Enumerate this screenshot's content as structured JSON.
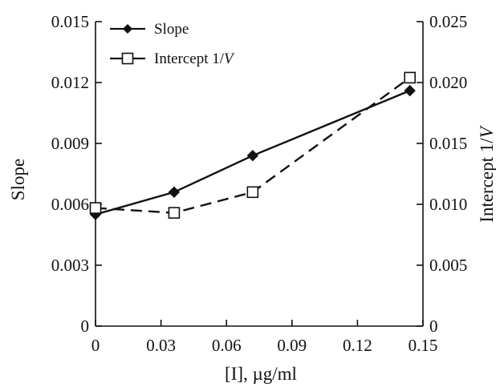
{
  "chart_data": {
    "type": "line",
    "x": [
      0,
      0.036,
      0.072,
      0.144
    ],
    "xlabel": "[I], µg/ml",
    "xlim": [
      0,
      0.15
    ],
    "xticks": [
      "0",
      "0.03",
      "0.06",
      "0.09",
      "0.12",
      "0.15"
    ],
    "ylabel_left": "Slope",
    "ylim_left": [
      0,
      0.015
    ],
    "yticks_left": [
      "0",
      "0.003",
      "0.006",
      "0.009",
      "0.012",
      "0.015"
    ],
    "ylabel_right": "Intercept 1/",
    "ylabel_right_italic": "V",
    "ylim_right": [
      0,
      0.025
    ],
    "yticks_right": [
      "0",
      "0.005",
      "0.010",
      "0.015",
      "0.020",
      "0.025"
    ],
    "grid": false,
    "legend_position": "top-left",
    "series": [
      {
        "name": "Slope",
        "axis": "left",
        "style": "solid",
        "marker": "filled-diamond",
        "color": "#111111",
        "values": [
          0.0055,
          0.0066,
          0.0084,
          0.0116
        ]
      },
      {
        "name": "Intercept 1/",
        "name_italic": "V",
        "axis": "right",
        "style": "dashed",
        "marker": "open-square",
        "color": "#111111",
        "values": [
          0.0097,
          0.0093,
          0.011,
          0.0204
        ]
      }
    ]
  }
}
